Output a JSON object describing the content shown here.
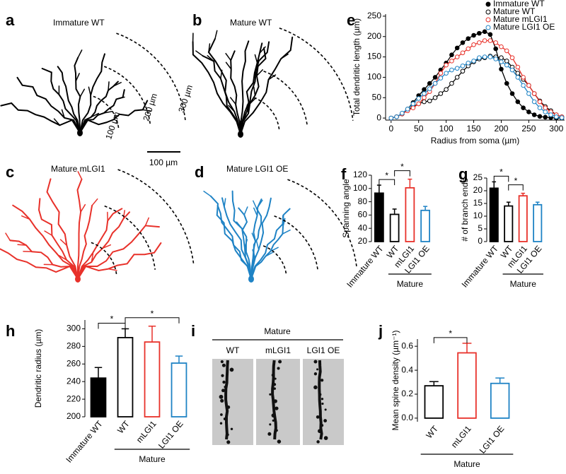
{
  "images": [
    {
      "panel": "a",
      "label": "Immature WT",
      "color": "#000000"
    },
    {
      "panel": "b",
      "label": "Mature WT",
      "color": "#000000"
    },
    {
      "panel": "c",
      "label": "Mature mLGI1",
      "color": "#e8312a"
    },
    {
      "panel": "d",
      "label": "Mature LGI1 OE",
      "color": "#1f83c5"
    }
  ],
  "radius_labels": [
    "100 µm",
    "200 µm",
    "300 µm"
  ],
  "scale_bar": "100 µm",
  "spine_panel": {
    "panel": "i",
    "group": "Mature",
    "labels": [
      "WT",
      "mLGI1",
      "LGI1 OE"
    ]
  },
  "chart_data": [
    {
      "type": "line",
      "panel": "e",
      "xlabel": "Radius from soma (µm)",
      "ylabel": "Total dendritic length (µm)",
      "x": [
        0,
        10,
        20,
        30,
        40,
        50,
        60,
        70,
        80,
        90,
        100,
        110,
        120,
        130,
        140,
        150,
        160,
        170,
        180,
        190,
        200,
        210,
        220,
        230,
        240,
        250,
        260,
        270,
        280,
        290,
        300,
        310
      ],
      "xlim": [
        -10,
        315
      ],
      "xticks": [
        0,
        50,
        100,
        150,
        200,
        250,
        300
      ],
      "ylim": [
        -5,
        255
      ],
      "yticks": [
        0,
        50,
        100,
        150,
        200,
        250
      ],
      "legend": "upper right",
      "series": [
        {
          "name": "Immature WT",
          "color": "#000000",
          "marker": "filled",
          "values": [
            0,
            3,
            10,
            22,
            38,
            55,
            70,
            85,
            100,
            118,
            135,
            155,
            172,
            185,
            195,
            203,
            208,
            212,
            205,
            170,
            120,
            85,
            60,
            40,
            25,
            15,
            8,
            4,
            2,
            1,
            0,
            0
          ]
        },
        {
          "name": "Mature WT",
          "color": "#000000",
          "marker": "open",
          "values": [
            0,
            3,
            10,
            20,
            28,
            35,
            40,
            42,
            50,
            60,
            70,
            85,
            100,
            115,
            128,
            138,
            145,
            148,
            152,
            150,
            148,
            140,
            125,
            110,
            95,
            80,
            60,
            42,
            28,
            18,
            8,
            3
          ]
        },
        {
          "name": "Mature mLGI1",
          "color": "#e8312a",
          "marker": "open",
          "values": [
            0,
            3,
            10,
            18,
            25,
            35,
            50,
            65,
            85,
            110,
            130,
            140,
            150,
            160,
            170,
            180,
            185,
            190,
            190,
            185,
            175,
            165,
            148,
            125,
            100,
            80,
            60,
            40,
            25,
            15,
            8,
            3
          ]
        },
        {
          "name": "Mature LGI1 OE",
          "color": "#1f83c5",
          "marker": "open",
          "values": [
            0,
            3,
            12,
            22,
            35,
            48,
            60,
            72,
            85,
            98,
            110,
            118,
            122,
            128,
            135,
            140,
            148,
            150,
            150,
            145,
            138,
            130,
            118,
            100,
            80,
            60,
            40,
            25,
            15,
            8,
            3,
            1
          ]
        }
      ]
    },
    {
      "type": "bar",
      "panel": "f",
      "ylabel": "Spanning angle",
      "categories": [
        "Immature WT",
        "WT",
        "mLGI1",
        "LGI1 OE"
      ],
      "values": [
        93,
        61,
        101,
        67
      ],
      "errors": [
        12,
        8,
        13,
        6
      ],
      "colors": [
        "#000000",
        "#000000",
        "#e8312a",
        "#1f83c5"
      ],
      "fills": [
        "#000000",
        "#ffffff",
        "#ffffff",
        "#ffffff"
      ],
      "ylim": [
        20,
        120
      ],
      "yticks": [
        20,
        40,
        60,
        80,
        100,
        120
      ],
      "group": {
        "label": "Mature",
        "from": 1,
        "to": 3
      },
      "significance": [
        {
          "label": "*",
          "pair": [
            0,
            1
          ]
        },
        {
          "label": "*",
          "pair": [
            1,
            2
          ]
        }
      ]
    },
    {
      "type": "bar",
      "panel": "g",
      "ylabel": "# of branch ends",
      "categories": [
        "Immature WT",
        "WT",
        "mLGI1",
        "LGI1 OE"
      ],
      "values": [
        21,
        14,
        18,
        14.5
      ],
      "errors": [
        2.5,
        1.5,
        1,
        1
      ],
      "colors": [
        "#000000",
        "#000000",
        "#e8312a",
        "#1f83c5"
      ],
      "fills": [
        "#000000",
        "#ffffff",
        "#ffffff",
        "#ffffff"
      ],
      "ylim": [
        0,
        25
      ],
      "yticks": [
        0,
        5,
        10,
        15,
        20,
        25
      ],
      "group": {
        "label": "Mature",
        "from": 1,
        "to": 3
      },
      "significance": [
        {
          "label": "*",
          "pair": [
            0,
            1
          ]
        },
        {
          "label": "*",
          "pair": [
            1,
            2
          ]
        }
      ]
    },
    {
      "type": "bar",
      "panel": "h",
      "ylabel": "Dendritic radius (µm)",
      "categories": [
        "Immature WT",
        "WT",
        "mLGI1",
        "LGI1 OE"
      ],
      "values": [
        244,
        290,
        285,
        261
      ],
      "errors": [
        12,
        10,
        18,
        8
      ],
      "colors": [
        "#000000",
        "#000000",
        "#e8312a",
        "#1f83c5"
      ],
      "fills": [
        "#000000",
        "#ffffff",
        "#ffffff",
        "#ffffff"
      ],
      "ylim": [
        200,
        310
      ],
      "yticks": [
        200,
        220,
        240,
        260,
        280,
        300
      ],
      "group": {
        "label": "Mature",
        "from": 1,
        "to": 3
      },
      "significance": [
        {
          "label": "*",
          "pair": [
            0,
            1
          ]
        },
        {
          "label": "*",
          "pair": [
            1,
            3
          ]
        }
      ]
    },
    {
      "type": "bar",
      "panel": "j",
      "ylabel": "Mean spine density (µm⁻¹)",
      "categories": [
        "WT",
        "mLGI1",
        "LGI1 OE"
      ],
      "values": [
        0.27,
        0.545,
        0.29
      ],
      "errors": [
        0.035,
        0.08,
        0.045
      ],
      "colors": [
        "#000000",
        "#e8312a",
        "#1f83c5"
      ],
      "fills": [
        "#ffffff",
        "#ffffff",
        "#ffffff"
      ],
      "ylim": [
        -0.03,
        0.66
      ],
      "yticks": [
        {
          "value": 0,
          "label": "0.0"
        },
        0.2,
        0.4,
        0.6
      ],
      "group": {
        "label": "Mature",
        "from": 0,
        "to": 2
      },
      "significance": [
        {
          "label": "*",
          "pair": [
            0,
            1
          ]
        }
      ]
    }
  ]
}
